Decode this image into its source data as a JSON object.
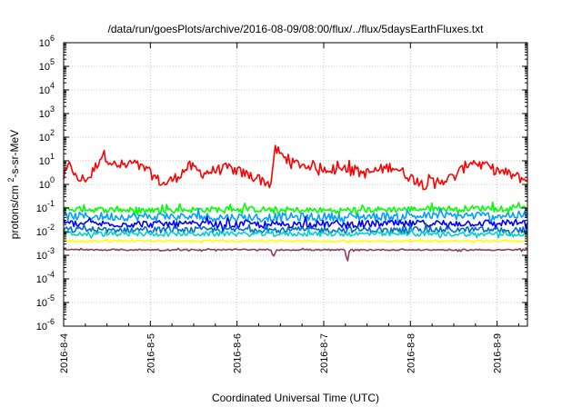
{
  "chart_data": {
    "type": "line",
    "title": "/data/run/goesPlots/archive/2016-08-09/08:00/flux/../flux/5daysEarthFluxes.txt",
    "xlabel": "Coordinated Universal Time (UTC)",
    "ylabel": "protons/cm2-s-sr-MeV",
    "y_scale": "log",
    "grid": true,
    "legend": "none",
    "xlim": [
      0,
      5.35
    ],
    "ylim": [
      1e-06,
      1000000.0
    ],
    "x_ticks": [
      {
        "x": 0,
        "label": "2016-8-4"
      },
      {
        "x": 1,
        "label": "2016-8-5"
      },
      {
        "x": 2,
        "label": "2016-8-6"
      },
      {
        "x": 3,
        "label": "2016-8-7"
      },
      {
        "x": 4,
        "label": "2016-8-8"
      },
      {
        "x": 5,
        "label": "2016-8-9"
      }
    ],
    "y_ticks": [
      {
        "value": 1e-06,
        "base": "10",
        "exp": "-6"
      },
      {
        "value": 1e-05,
        "base": "10",
        "exp": "-5"
      },
      {
        "value": 0.0001,
        "base": "10",
        "exp": "-4"
      },
      {
        "value": 0.001,
        "base": "10",
        "exp": "-3"
      },
      {
        "value": 0.01,
        "base": "10",
        "exp": "-2"
      },
      {
        "value": 0.1,
        "base": "10",
        "exp": "-1"
      },
      {
        "value": 1,
        "base": "10",
        "exp": "0"
      },
      {
        "value": 10,
        "base": "10",
        "exp": "1"
      },
      {
        "value": 100,
        "base": "10",
        "exp": "2"
      },
      {
        "value": 1000,
        "base": "10",
        "exp": "3"
      },
      {
        "value": 10000,
        "base": "10",
        "exp": "4"
      },
      {
        "value": 100000,
        "base": "10",
        "exp": "5"
      },
      {
        "value": 1000000,
        "base": "10",
        "exp": "6"
      }
    ],
    "series": [
      {
        "color": "#ff0000",
        "base": 3.0,
        "noise": 0.45,
        "anchors": [
          [
            0,
            2
          ],
          [
            0.08,
            8
          ],
          [
            0.15,
            1.5
          ],
          [
            0.3,
            2
          ],
          [
            0.45,
            20
          ],
          [
            0.6,
            6
          ],
          [
            0.8,
            8
          ],
          [
            1.0,
            3
          ],
          [
            1.15,
            1
          ],
          [
            1.3,
            2
          ],
          [
            1.45,
            6
          ],
          [
            1.6,
            3
          ],
          [
            1.9,
            5
          ],
          [
            2.2,
            2
          ],
          [
            2.4,
            1
          ],
          [
            2.42,
            40
          ],
          [
            2.6,
            8
          ],
          [
            2.8,
            7
          ],
          [
            3.0,
            5
          ],
          [
            3.2,
            4
          ],
          [
            3.5,
            3
          ],
          [
            3.8,
            6
          ],
          [
            4.0,
            2
          ],
          [
            4.15,
            1
          ],
          [
            4.5,
            2
          ],
          [
            4.7,
            10
          ],
          [
            4.9,
            5
          ],
          [
            5.1,
            3
          ],
          [
            5.35,
            1.5
          ]
        ]
      },
      {
        "color": "#00ff00",
        "base": 0.09,
        "noise": 0.25,
        "anchors": [
          [
            0,
            0.09
          ],
          [
            1,
            0.08
          ],
          [
            2,
            0.09
          ],
          [
            3,
            0.08
          ],
          [
            4,
            0.09
          ],
          [
            5,
            0.1
          ],
          [
            5.35,
            0.12
          ]
        ]
      },
      {
        "color": "#00a0ff",
        "base": 0.045,
        "noise": 0.35,
        "anchors": [
          [
            0,
            0.045
          ],
          [
            2,
            0.04
          ],
          [
            4,
            0.045
          ],
          [
            5.35,
            0.05
          ]
        ]
      },
      {
        "color": "#0000ff",
        "base": 0.022,
        "noise": 0.3,
        "anchors": [
          [
            0,
            0.022
          ],
          [
            2,
            0.02
          ],
          [
            4,
            0.022
          ],
          [
            5.35,
            0.024
          ]
        ]
      },
      {
        "color": "#0070c0",
        "base": 0.012,
        "noise": 0.25,
        "anchors": [
          [
            0,
            0.012
          ],
          [
            5.35,
            0.012
          ]
        ]
      },
      {
        "color": "#00d0d0",
        "base": 0.008,
        "noise": 0.2,
        "anchors": [
          [
            0,
            0.008
          ],
          [
            5.35,
            0.008
          ]
        ]
      },
      {
        "color": "#ffff00",
        "base": 0.004,
        "noise": 0.08,
        "anchors": [
          [
            0,
            0.004
          ],
          [
            5.35,
            0.004
          ]
        ]
      },
      {
        "color": "#8b3a62",
        "base": 0.0017,
        "noise": 0.06,
        "anchors": [
          [
            0,
            0.0017
          ],
          [
            2.4,
            0.0017
          ],
          [
            2.42,
            0.0008
          ],
          [
            2.45,
            0.0017
          ],
          [
            3.25,
            0.0017
          ],
          [
            3.27,
            0.0004
          ],
          [
            3.3,
            0.0017
          ],
          [
            5.35,
            0.0017
          ]
        ]
      }
    ]
  }
}
